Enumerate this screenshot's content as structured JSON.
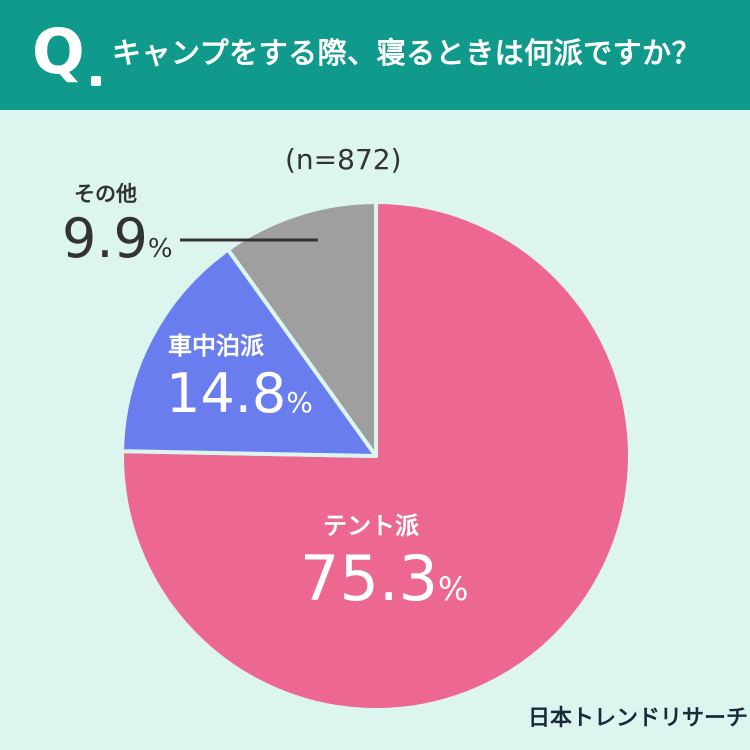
{
  "header": {
    "q_label": "Q",
    "question": "キャンプをする際、寝るときは何派ですか？"
  },
  "sample_size": "(n=872)",
  "chart_data": {
    "type": "pie",
    "title": "キャンプをする際、寝るときは何派ですか？",
    "n": 872,
    "start": "12 o'clock",
    "direction": "clockwise",
    "categories": [
      "テント派",
      "車中泊派",
      "その他"
    ],
    "values": [
      75.3,
      14.8,
      9.9
    ],
    "unit": "%",
    "colors": [
      "#ec6891",
      "#6a7dee",
      "#9f9f9f"
    ]
  },
  "labels": {
    "tent": {
      "name": "テント派",
      "value": "75.3",
      "unit": "%"
    },
    "car": {
      "name": "車中泊派",
      "value": "14.8",
      "unit": "%"
    },
    "other": {
      "name": "その他",
      "value": "9.9",
      "unit": "%"
    }
  },
  "brand": {
    "logo": "日本トレンドリサーチ"
  }
}
